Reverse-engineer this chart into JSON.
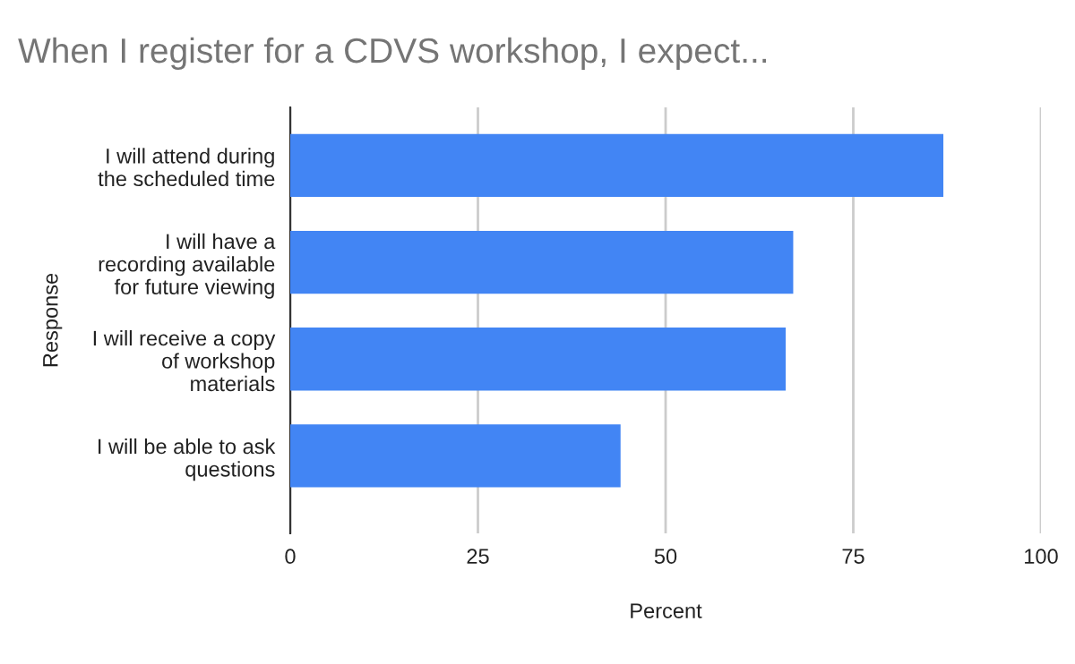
{
  "chart_data": {
    "type": "bar",
    "orientation": "horizontal",
    "title": "When I register for a CDVS workshop, I expect...",
    "xlabel": "Percent",
    "ylabel": "Response",
    "categories": [
      "I will attend during\nthe scheduled time",
      "I will have a\nrecording available\nfor future viewing",
      "I will receive a copy\nof workshop\nmaterials",
      "I will be able to ask\nquestions"
    ],
    "values": [
      87,
      67,
      66,
      44
    ],
    "color": "#4285f4",
    "xlim": [
      0,
      100
    ],
    "xticks": [
      0,
      25,
      50,
      75,
      100
    ],
    "grid": "x",
    "legend": false
  }
}
